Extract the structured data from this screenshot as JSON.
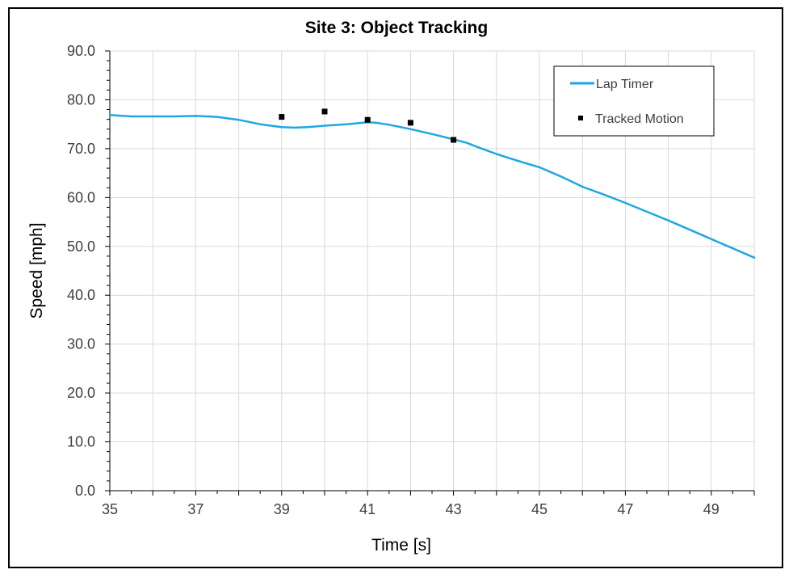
{
  "chart_data": {
    "type": "line",
    "title": "Site 3: Object Tracking",
    "xlabel": "Time [s]",
    "ylabel": "Speed [mph]",
    "xlim": [
      35,
      50
    ],
    "ylim": [
      0,
      90
    ],
    "x_ticks": [
      "35",
      "37",
      "39",
      "41",
      "43",
      "45",
      "47",
      "49"
    ],
    "x_tick_values": [
      35,
      37,
      39,
      41,
      43,
      45,
      47,
      49
    ],
    "y_ticks": [
      "0.0",
      "10.0",
      "20.0",
      "30.0",
      "40.0",
      "50.0",
      "60.0",
      "70.0",
      "80.0",
      "90.0"
    ],
    "y_tick_values": [
      0,
      10,
      20,
      30,
      40,
      50,
      60,
      70,
      80,
      90
    ],
    "grid": true,
    "legend_position": "top-right",
    "series": [
      {
        "name": "Lap Timer",
        "kind": "line",
        "color": "#1FA8E0",
        "x": [
          35,
          35.5,
          36,
          36.5,
          37,
          37.5,
          38,
          38.5,
          39,
          39.3,
          39.6,
          40,
          40.5,
          41,
          41.2,
          41.5,
          42,
          42.5,
          43,
          43.3,
          43.6,
          44,
          44.5,
          45,
          45.5,
          46,
          46.5,
          47,
          47.5,
          48,
          48.5,
          49,
          49.5,
          50
        ],
        "y": [
          76.9,
          76.6,
          76.6,
          76.6,
          76.7,
          76.5,
          75.9,
          75.0,
          74.4,
          74.3,
          74.4,
          74.7,
          75.0,
          75.4,
          75.3,
          74.9,
          74.0,
          73.0,
          71.9,
          71.2,
          70.2,
          68.9,
          67.5,
          66.2,
          64.3,
          62.2,
          60.6,
          58.9,
          57.1,
          55.3,
          53.4,
          51.5,
          49.6,
          47.7
        ]
      },
      {
        "name": "Tracked Motion",
        "kind": "scatter",
        "color": "#000000",
        "x": [
          39,
          40,
          41,
          42,
          43
        ],
        "y": [
          76.5,
          77.6,
          75.9,
          75.3,
          71.8
        ]
      }
    ]
  }
}
